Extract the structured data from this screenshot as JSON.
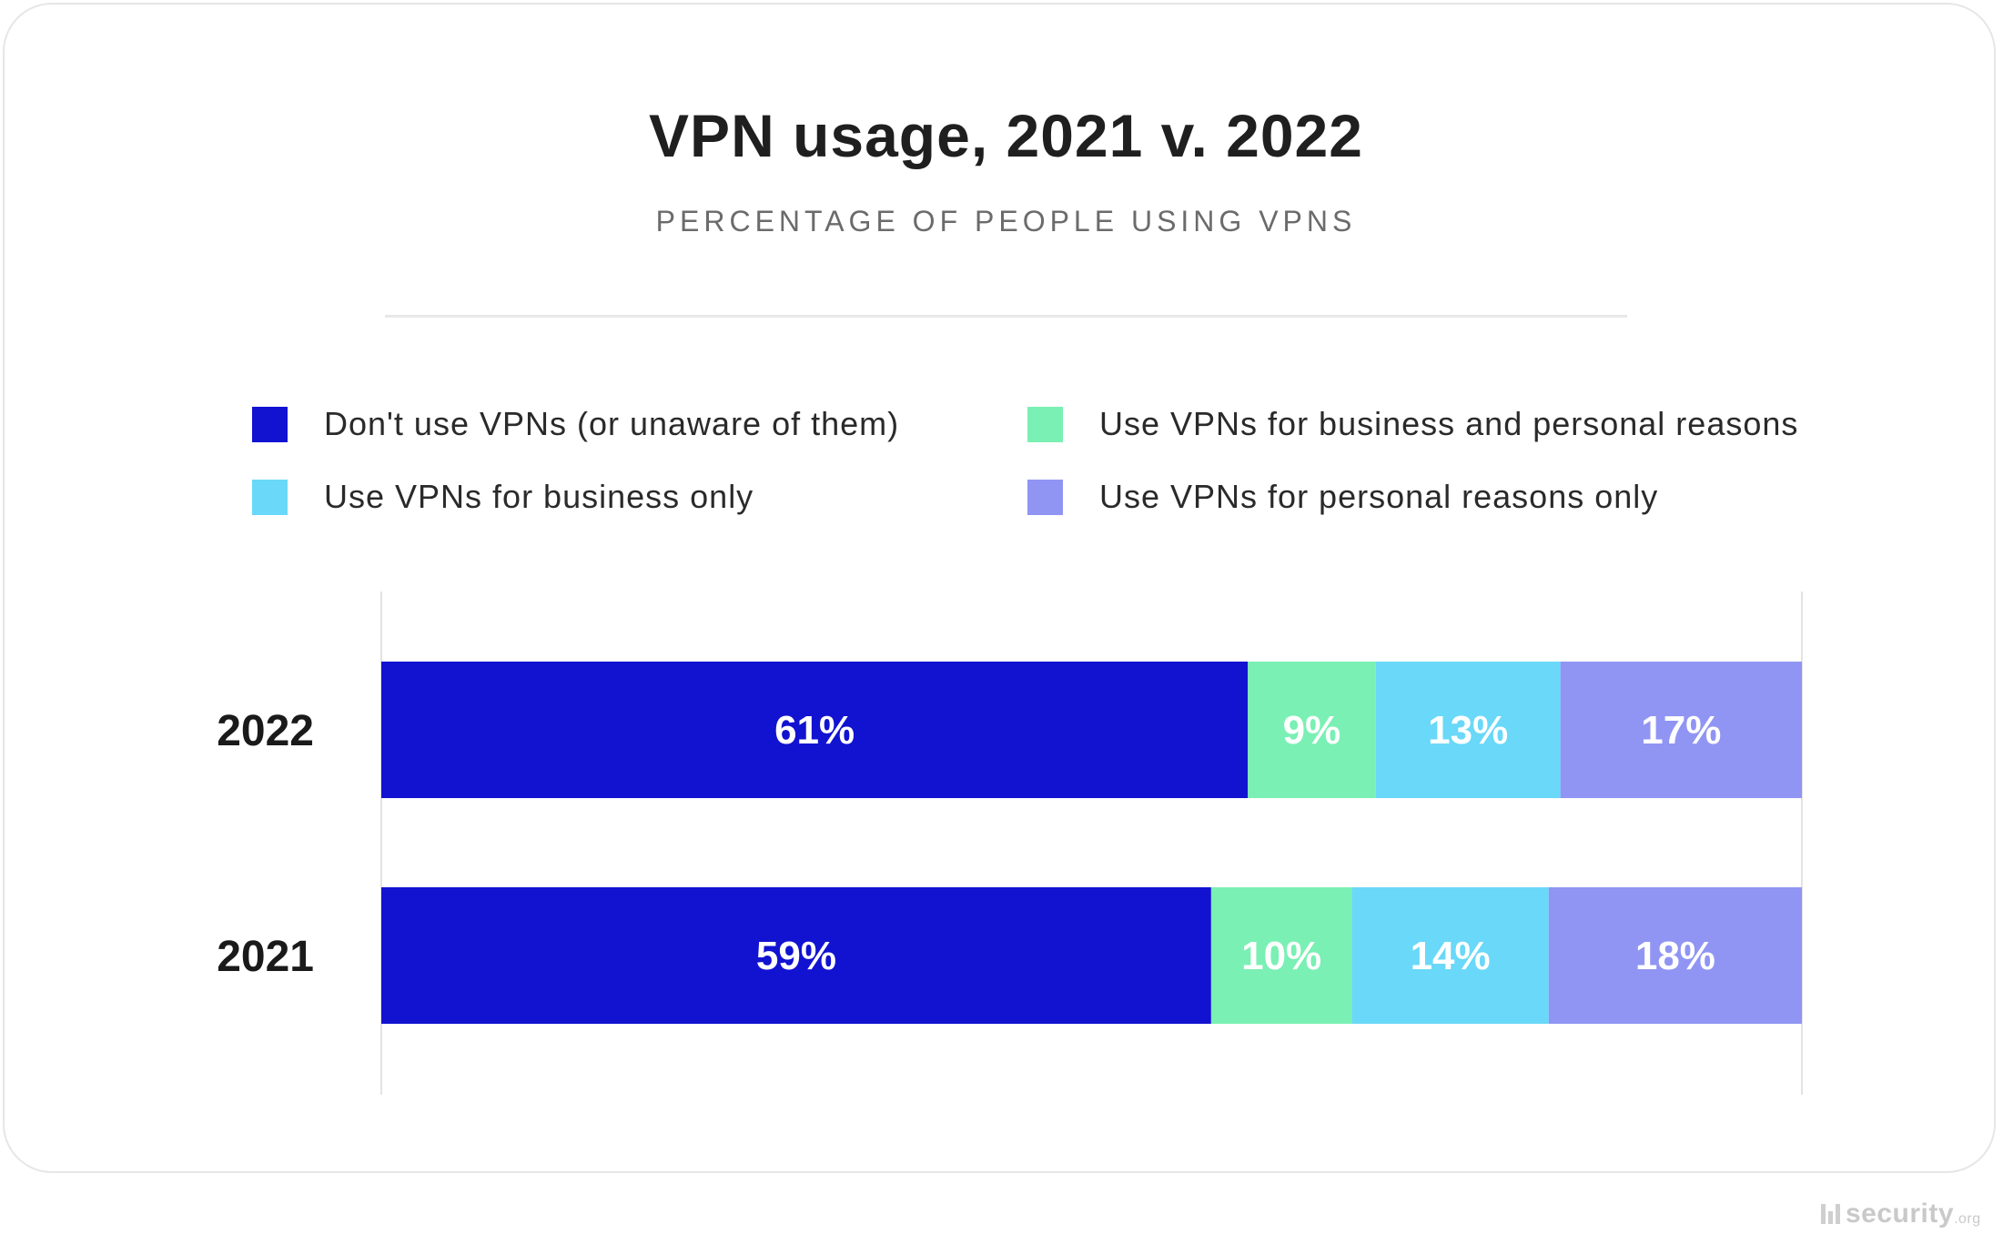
{
  "header": {
    "title": "VPN usage, 2021 v. 2022",
    "subtitle": "PERCENTAGE OF PEOPLE USING VPNS"
  },
  "legend": [
    {
      "label": "Don't use VPNs (or unaware of them)",
      "color": "#1212d1"
    },
    {
      "label": "Use VPNs for business and personal reasons",
      "color": "#7af0b4"
    },
    {
      "label": "Use VPNs for business only",
      "color": "#6ad8f8"
    },
    {
      "label": "Use VPNs for personal reasons only",
      "color": "#9095f3"
    }
  ],
  "chart_data": {
    "type": "bar",
    "orientation": "horizontal",
    "stacked": true,
    "categories": [
      "2022",
      "2021"
    ],
    "series": [
      {
        "name": "Don't use VPNs (or unaware of them)",
        "values": [
          61,
          59
        ],
        "labels": [
          "61%",
          "59%"
        ],
        "color": "#1212d1"
      },
      {
        "name": "Use VPNs for business and personal reasons",
        "values": [
          9,
          10
        ],
        "labels": [
          "9%",
          "10%"
        ],
        "color": "#7af0b4"
      },
      {
        "name": "Use VPNs for business only",
        "values": [
          13,
          14
        ],
        "labels": [
          "13%",
          "14%"
        ],
        "color": "#6ad8f8"
      },
      {
        "name": "Use VPNs for personal reasons only",
        "values": [
          17,
          18
        ],
        "labels": [
          "17%",
          "18%"
        ],
        "color": "#9095f3"
      }
    ],
    "grid": false,
    "legend_position": "top"
  },
  "watermark": {
    "name": "security",
    "suffix": ".org"
  }
}
